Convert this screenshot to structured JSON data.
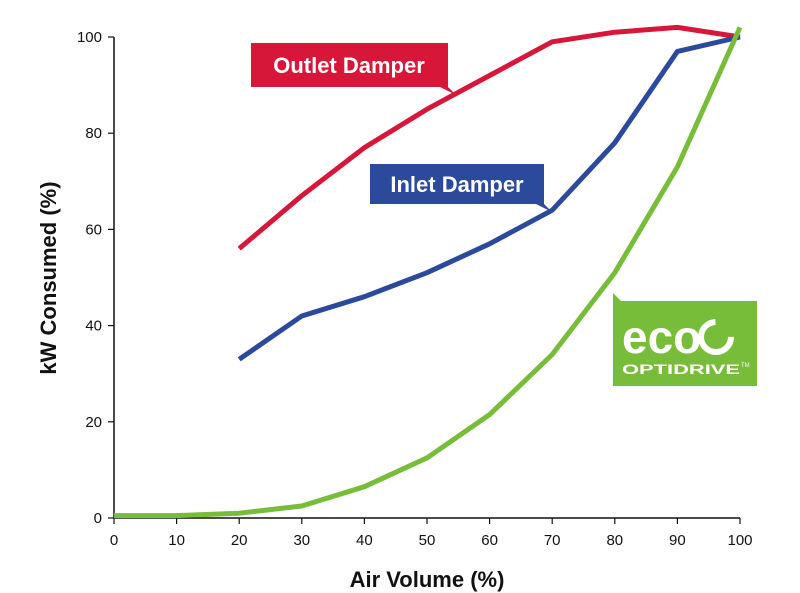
{
  "chart_data": {
    "type": "line",
    "title": "",
    "xlabel": "Air Volume (%)",
    "ylabel": "kW Consumed (%)",
    "xlim": [
      0,
      100
    ],
    "ylim": [
      0,
      100
    ],
    "x_ticks": [
      0,
      10,
      20,
      30,
      40,
      50,
      60,
      70,
      80,
      90,
      100
    ],
    "y_ticks": [
      0,
      20,
      40,
      60,
      80,
      100
    ],
    "grid": false,
    "series": [
      {
        "name": "Outlet Damper",
        "color": "#d6173a",
        "points": [
          [
            20,
            56
          ],
          [
            30,
            67
          ],
          [
            40,
            77
          ],
          [
            50,
            85
          ],
          [
            60,
            92
          ],
          [
            70,
            99
          ],
          [
            80,
            101
          ],
          [
            90,
            102
          ],
          [
            100,
            100
          ]
        ]
      },
      {
        "name": "Inlet Damper",
        "color": "#2b4a9b",
        "points": [
          [
            20,
            33
          ],
          [
            30,
            42
          ],
          [
            40,
            46
          ],
          [
            50,
            51
          ],
          [
            60,
            57
          ],
          [
            70,
            64
          ],
          [
            80,
            78
          ],
          [
            90,
            97
          ],
          [
            100,
            100
          ]
        ]
      },
      {
        "name": "",
        "color": "#77bd3a",
        "points": [
          [
            0,
            0.5
          ],
          [
            10,
            0.5
          ],
          [
            20,
            1
          ],
          [
            30,
            2.5
          ],
          [
            40,
            6.5
          ],
          [
            50,
            12.5
          ],
          [
            60,
            21.5
          ],
          [
            70,
            34
          ],
          [
            80,
            51
          ],
          [
            90,
            73
          ],
          [
            100,
            102
          ]
        ]
      }
    ],
    "logo": {
      "brand_main": "eco",
      "brand_sub": "OPTIDRIVE",
      "brand_mark": "TM",
      "color": "#77bd3a"
    }
  }
}
